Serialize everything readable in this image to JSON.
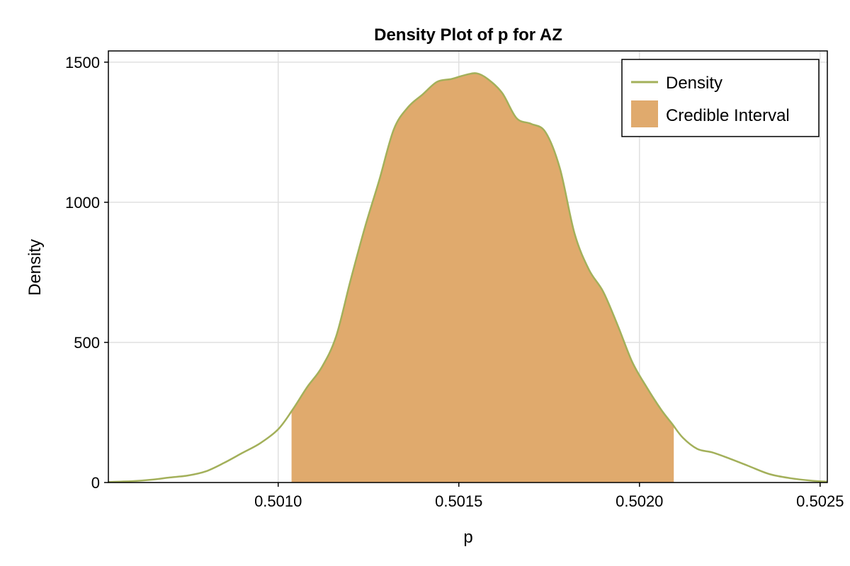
{
  "chart_data": {
    "type": "area",
    "title": "Density Plot of p for AZ",
    "xlabel": "p",
    "ylabel": "Density",
    "xlim": [
      0.50053,
      0.50252
    ],
    "ylim": [
      0,
      1540
    ],
    "xticks": [
      "0.5010",
      "0.5015",
      "0.5020",
      "0.5025"
    ],
    "xtick_values": [
      0.501,
      0.5015,
      0.502,
      0.5025
    ],
    "yticks": [
      "0",
      "500",
      "1000",
      "1500"
    ],
    "ytick_values": [
      0,
      500,
      1000,
      1500
    ],
    "grid": true,
    "legend_position": "top-right",
    "series": [
      {
        "name": "Density",
        "type": "line",
        "color": "#a3b05a",
        "x": [
          0.50053,
          0.5006,
          0.50065,
          0.5007,
          0.50075,
          0.5008,
          0.50085,
          0.5009,
          0.50095,
          0.501,
          0.50104,
          0.50108,
          0.50112,
          0.50116,
          0.5012,
          0.50124,
          0.50128,
          0.50132,
          0.50136,
          0.5014,
          0.50144,
          0.50148,
          0.50152,
          0.50155,
          0.50158,
          0.50162,
          0.50166,
          0.5017,
          0.50174,
          0.50178,
          0.50182,
          0.50186,
          0.5019,
          0.50194,
          0.50198,
          0.50202,
          0.50206,
          0.50209,
          0.50212,
          0.50216,
          0.5022,
          0.50224,
          0.5023,
          0.50236,
          0.50242,
          0.50248,
          0.50252
        ],
        "y": [
          2,
          5,
          10,
          18,
          25,
          40,
          70,
          105,
          140,
          190,
          260,
          340,
          410,
          520,
          720,
          910,
          1080,
          1260,
          1340,
          1385,
          1430,
          1440,
          1455,
          1460,
          1440,
          1390,
          1300,
          1280,
          1250,
          1120,
          890,
          760,
          680,
          560,
          430,
          340,
          260,
          210,
          160,
          120,
          108,
          90,
          60,
          30,
          15,
          6,
          3
        ]
      }
    ],
    "credible_interval": {
      "name": "Credible Interval",
      "color": "#e0aa6d",
      "x_start": 0.501037,
      "x_end": 0.502095
    }
  }
}
